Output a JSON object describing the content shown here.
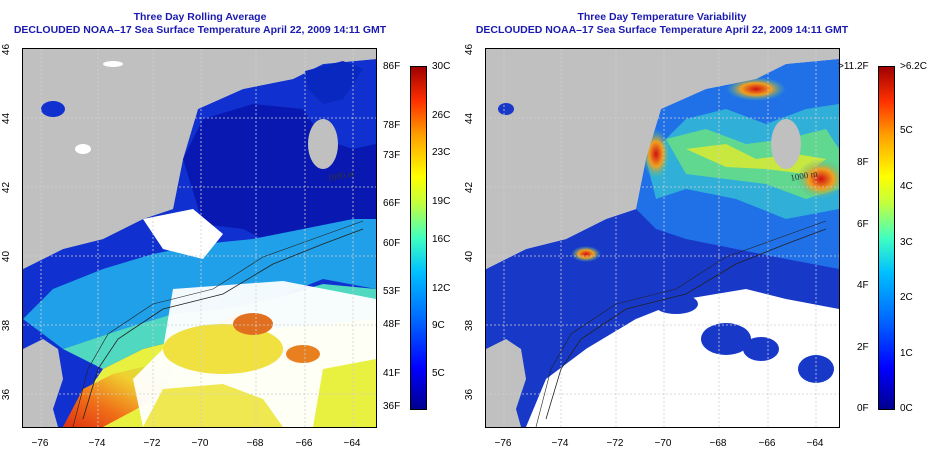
{
  "left_panel": {
    "title_line1": "Three Day Rolling Average",
    "title_line2": "DECLOUDED NOAA–17 Sea Surface Temperature April 22, 2009 14:11 GMT",
    "colorbar_left_labels": [
      "86F",
      "78F",
      "73F",
      "66F",
      "60F",
      "53F",
      "48F",
      "41F",
      "36F"
    ],
    "colorbar_right_labels": [
      "30C",
      "26C",
      "23C",
      "19C",
      "16C",
      "12C",
      "9C",
      "5C"
    ],
    "contour_label": "1000 m"
  },
  "right_panel": {
    "title_line1": "Three Day Temperature Variability",
    "title_line2": "DECLOUDED NOAA–17 Sea Surface Temperature April 22, 2009 14:11 GMT",
    "colorbar_left_labels": [
      ">11.2F",
      "8F",
      "6F",
      "4F",
      "2F",
      "0F"
    ],
    "colorbar_right_labels": [
      ">6.2C",
      "5C",
      "4C",
      "3C",
      "2C",
      "1C",
      "0C"
    ],
    "contour_label": "1000 m"
  },
  "lat_labels": [
    "46",
    "44",
    "42",
    "40",
    "38",
    "36"
  ],
  "lon_labels": [
    "−76",
    "−74",
    "−72",
    "−70",
    "−68",
    "−66",
    "−64"
  ],
  "colors": {
    "title": "#1a1ab0",
    "land": "#c0c0c0",
    "cloud": "#ffffff"
  }
}
